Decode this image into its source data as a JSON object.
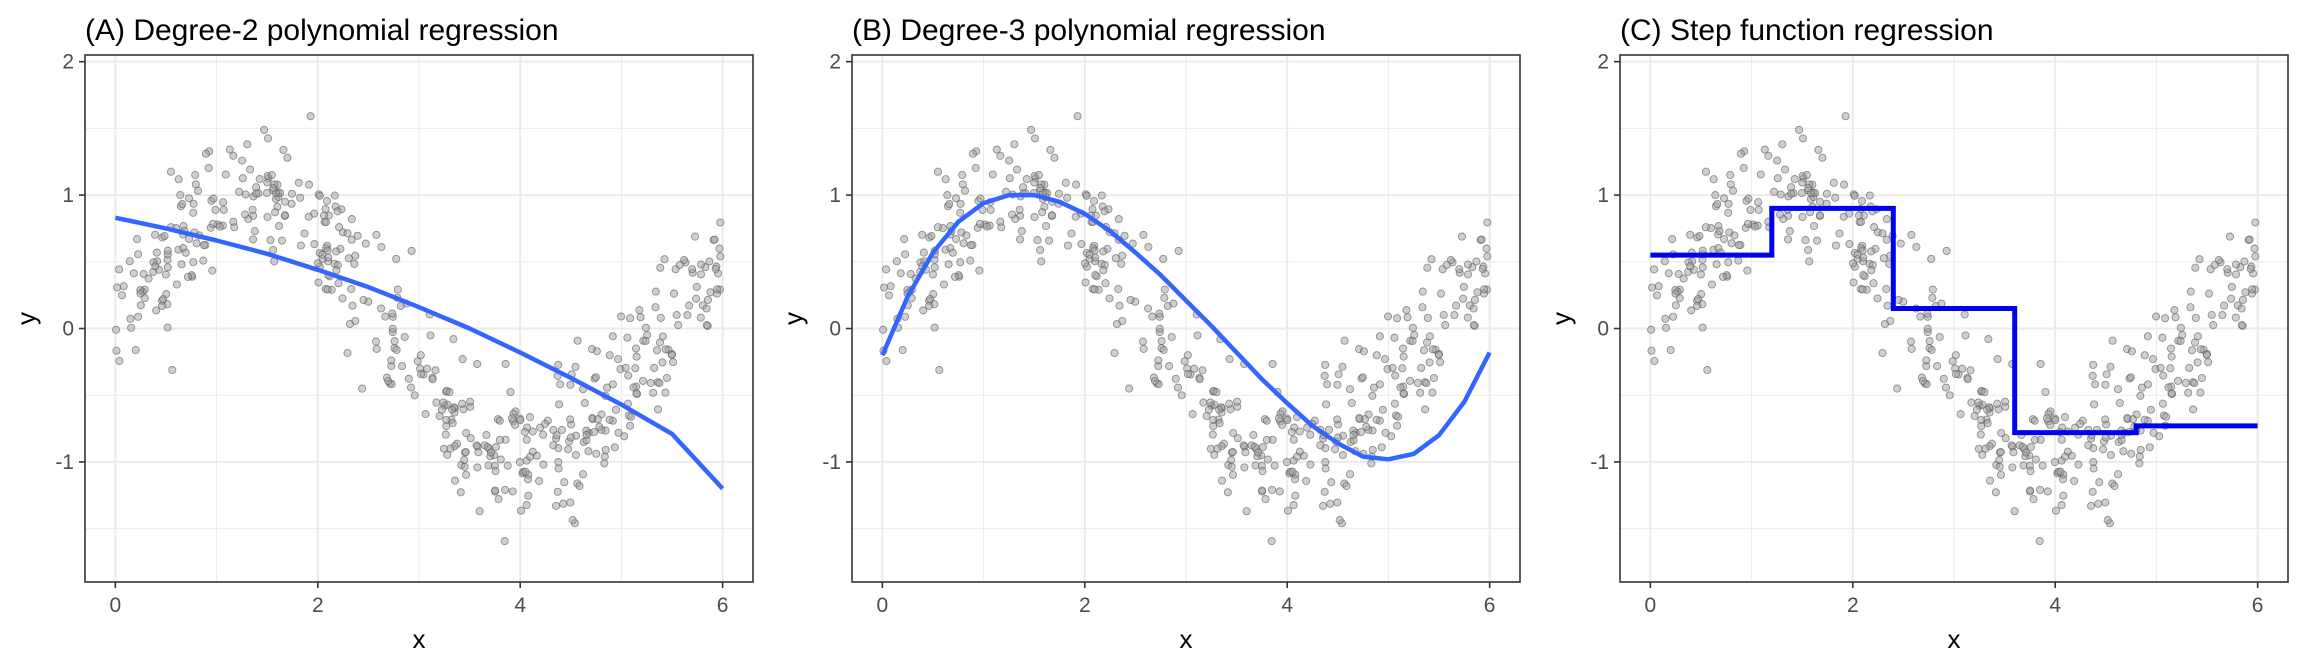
{
  "chart_data": [
    {
      "type": "scatter",
      "title": "(A) Degree-2 polynomial regression",
      "xlabel": "x",
      "ylabel": "y",
      "xlim": [
        -0.3,
        6.3
      ],
      "ylim": [
        -1.9,
        2.05
      ],
      "x_ticks": [
        0,
        2,
        4,
        6
      ],
      "x_tick_labels": [
        "0",
        "2",
        "4",
        "6"
      ],
      "y_ticks": [
        -1,
        0,
        1,
        2
      ],
      "y_tick_labels": [
        "-1",
        "0",
        "1",
        "2"
      ],
      "grid": true,
      "fit": {
        "kind": "quadratic",
        "color": "#3366ff",
        "x": [
          0.0,
          0.5,
          1.0,
          1.5,
          2.0,
          2.5,
          3.0,
          3.5,
          4.0,
          4.5,
          5.0,
          5.5,
          6.0
        ],
        "y": [
          0.83,
          0.75,
          0.66,
          0.56,
          0.44,
          0.31,
          0.16,
          0.0,
          -0.18,
          -0.37,
          -0.57,
          -0.79,
          -1.2
        ]
      }
    },
    {
      "type": "scatter",
      "title": "(B) Degree-3 polynomial regression",
      "xlabel": "x",
      "ylabel": "y",
      "xlim": [
        -0.3,
        6.3
      ],
      "ylim": [
        -1.9,
        2.05
      ],
      "x_ticks": [
        0,
        2,
        4,
        6
      ],
      "x_tick_labels": [
        "0",
        "2",
        "4",
        "6"
      ],
      "y_ticks": [
        -1,
        0,
        1,
        2
      ],
      "y_tick_labels": [
        "-1",
        "0",
        "1",
        "2"
      ],
      "grid": true,
      "fit": {
        "kind": "cubic",
        "color": "#3366ff",
        "x": [
          0.0,
          0.25,
          0.5,
          0.75,
          1.0,
          1.25,
          1.5,
          1.75,
          2.0,
          2.25,
          2.5,
          2.75,
          3.0,
          3.25,
          3.5,
          3.75,
          4.0,
          4.25,
          4.5,
          4.75,
          5.0,
          5.25,
          5.5,
          5.75,
          6.0
        ],
        "y": [
          -0.2,
          0.24,
          0.57,
          0.8,
          0.94,
          1.0,
          1.0,
          0.95,
          0.86,
          0.73,
          0.57,
          0.4,
          0.21,
          0.02,
          -0.18,
          -0.38,
          -0.56,
          -0.73,
          -0.86,
          -0.96,
          -0.98,
          -0.94,
          -0.8,
          -0.55,
          -0.18
        ]
      }
    },
    {
      "type": "scatter",
      "title": "(C) Step function regression",
      "xlabel": "x",
      "ylabel": "y",
      "xlim": [
        -0.3,
        6.3
      ],
      "ylim": [
        -1.9,
        2.05
      ],
      "x_ticks": [
        0,
        2,
        4,
        6
      ],
      "x_tick_labels": [
        "0",
        "2",
        "4",
        "6"
      ],
      "y_ticks": [
        -1,
        0,
        1,
        2
      ],
      "y_tick_labels": [
        "-1",
        "0",
        "1",
        "2"
      ],
      "grid": true,
      "fit": {
        "kind": "step",
        "color": "#0000ee",
        "x": [
          0.0,
          1.2,
          1.2,
          2.4,
          2.4,
          3.6,
          3.6,
          4.8,
          4.8,
          6.0
        ],
        "y": [
          0.55,
          0.55,
          0.9,
          0.9,
          0.15,
          0.15,
          -0.78,
          -0.78,
          -0.73,
          -0.73
        ]
      }
    }
  ],
  "colors": {
    "points_fill": "#a0a0a0",
    "points_stroke": "#555555",
    "grid": "#ebebeb",
    "panel_border": "#333333",
    "smooth_line": "#3366ff",
    "step_line": "#0000ee"
  }
}
